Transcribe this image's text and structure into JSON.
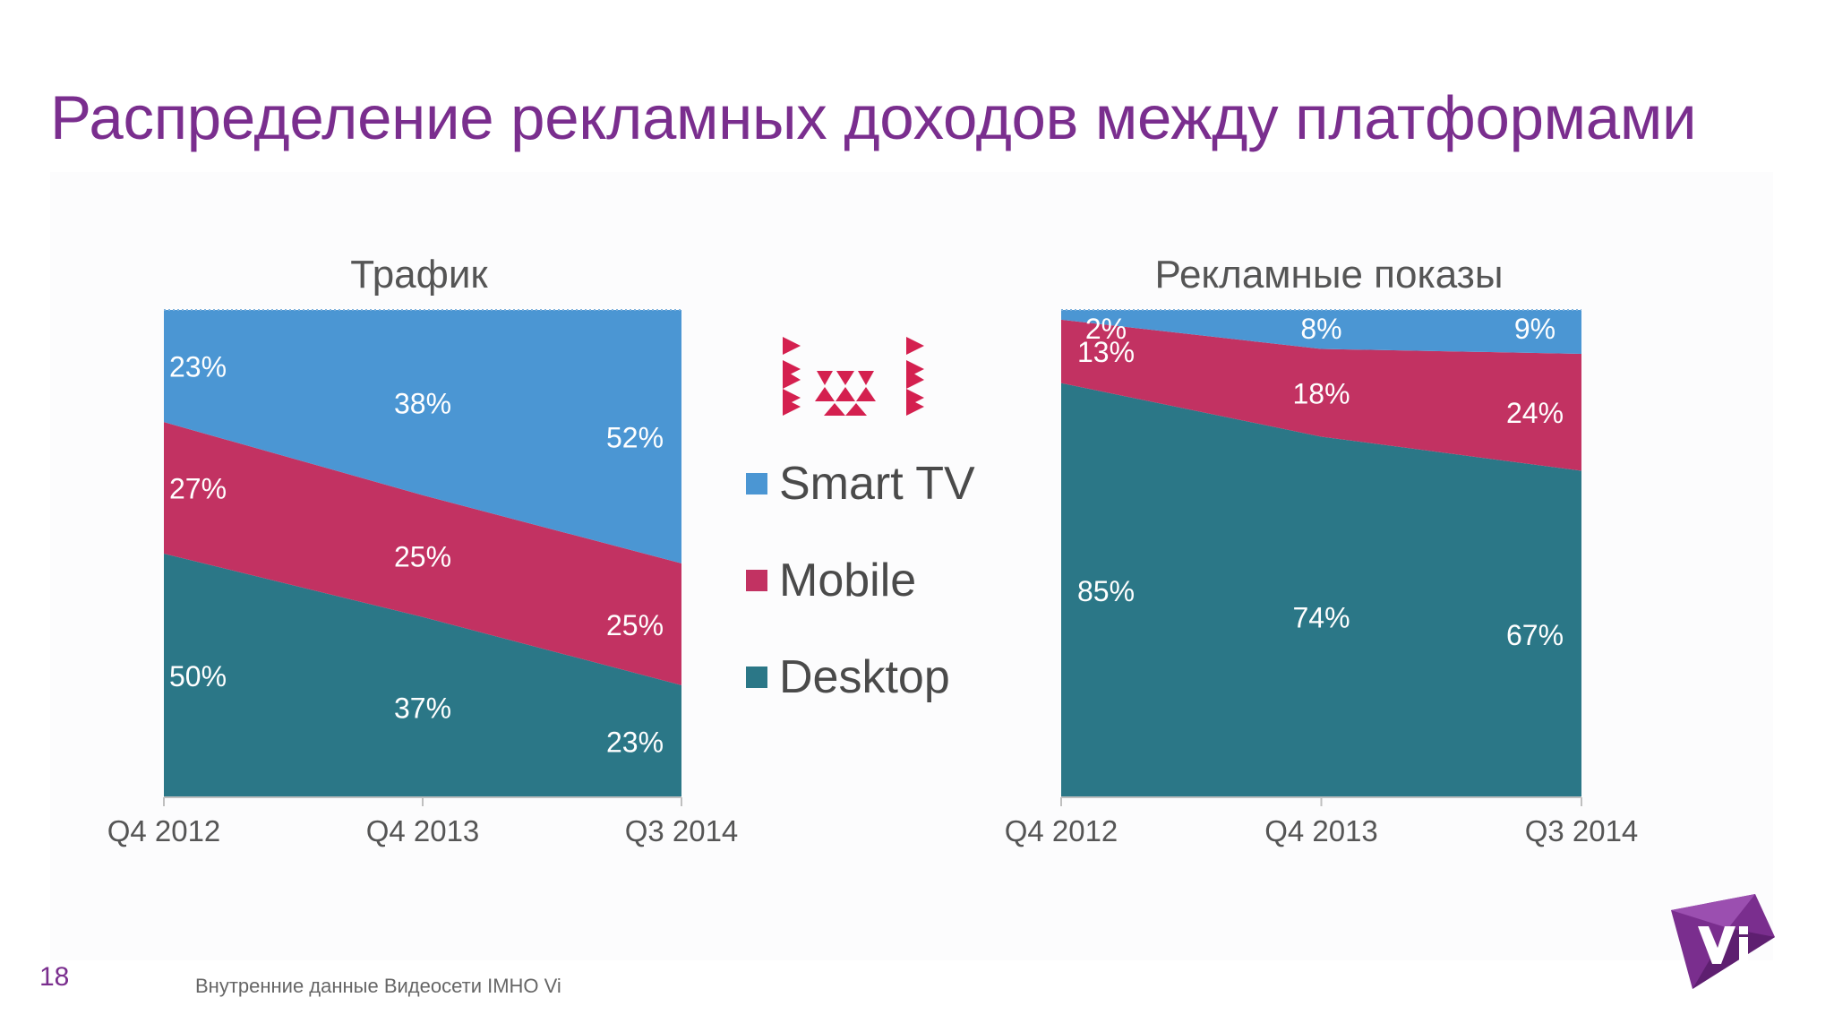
{
  "title": "Распределение рекламных доходов между платформами",
  "legend": [
    {
      "label": "Smart TV",
      "color": "#4b96d3"
    },
    {
      "label": "Mobile",
      "color": "#c23262"
    },
    {
      "label": "Desktop",
      "color": "#2b7787"
    }
  ],
  "footer": {
    "page_number": "18",
    "source": "Внутренние данные Видеосети IMHO Vi"
  },
  "logos": {
    "brand": "ivi",
    "vendor": "Vi"
  },
  "chart_data": [
    {
      "type": "area",
      "stacked": "percent",
      "title": "Трафик",
      "categories": [
        "Q4 2012",
        "Q4 2013",
        "Q3 2014"
      ],
      "series": [
        {
          "name": "Desktop",
          "values": [
            50,
            37,
            23
          ],
          "labels": [
            "50%",
            "37%",
            "23%"
          ],
          "color": "#2b7787"
        },
        {
          "name": "Mobile",
          "values": [
            27,
            25,
            25
          ],
          "labels": [
            "27%",
            "25%",
            "25%"
          ],
          "color": "#c23262"
        },
        {
          "name": "Smart TV",
          "values": [
            23,
            38,
            52
          ],
          "labels": [
            "23%",
            "38%",
            "52%"
          ],
          "color": "#4b96d3"
        }
      ],
      "ylim": [
        0,
        100
      ],
      "grid": false
    },
    {
      "type": "area",
      "stacked": "percent",
      "title": "Рекламные показы",
      "categories": [
        "Q4 2012",
        "Q4 2013",
        "Q3 2014"
      ],
      "series": [
        {
          "name": "Desktop",
          "values": [
            85,
            74,
            67
          ],
          "labels": [
            "85%",
            "74%",
            "67%"
          ],
          "color": "#2b7787"
        },
        {
          "name": "Mobile",
          "values": [
            13,
            18,
            24
          ],
          "labels": [
            "13%",
            "18%",
            "24%"
          ],
          "color": "#c23262"
        },
        {
          "name": "Smart TV",
          "values": [
            2,
            8,
            9
          ],
          "labels": [
            "2%",
            "8%",
            "9%"
          ],
          "color": "#4b96d3"
        }
      ],
      "ylim": [
        0,
        100
      ],
      "grid": false
    }
  ]
}
